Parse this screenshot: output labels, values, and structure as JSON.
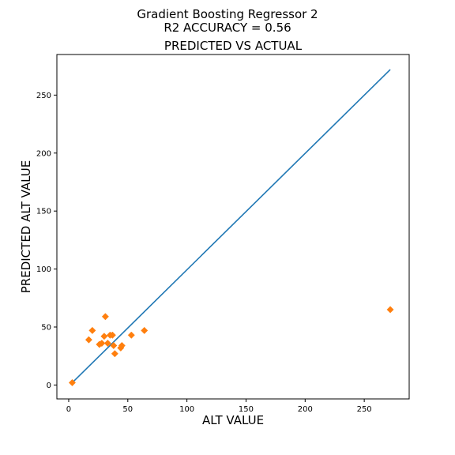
{
  "figure": {
    "suptitle_line1": "Gradient Boosting Regressor 2",
    "suptitle_line2": "R2 ACCURACY = 0.56"
  },
  "chart_data": {
    "type": "scatter",
    "title": "PREDICTED VS ACTUAL",
    "xlabel": "ALT VALUE",
    "ylabel": "PREDICTED ALT VALUE",
    "xlim": [
      -10,
      288
    ],
    "ylim": [
      -12,
      285
    ],
    "xticks": [
      0,
      50,
      100,
      150,
      200,
      250
    ],
    "yticks": [
      0,
      50,
      100,
      150,
      200,
      250
    ],
    "grid": false,
    "legend": "none",
    "reference_line": {
      "x": [
        3,
        272
      ],
      "y": [
        2,
        272
      ],
      "color": "#1f77b4"
    },
    "points": {
      "marker": "diamond",
      "color": "#ff7f0e",
      "x": [
        3,
        17,
        20,
        26,
        28,
        30,
        31,
        33,
        35,
        37,
        38,
        39,
        44,
        45,
        53,
        64,
        272
      ],
      "y": [
        2,
        39,
        47,
        35,
        36,
        42,
        59,
        36,
        43,
        43,
        34,
        27,
        32,
        34,
        43,
        47,
        65
      ]
    }
  }
}
